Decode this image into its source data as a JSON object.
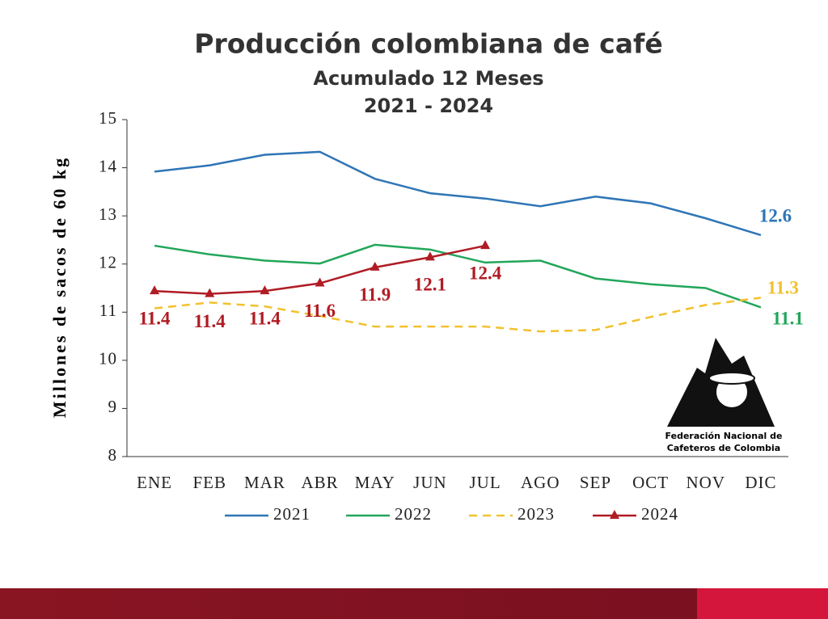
{
  "chart_data": {
    "type": "line",
    "title": "Producción colombiana de café",
    "subtitle": "Acumulado 12 Meses",
    "period": "2021 - 2024",
    "y_label": "Millones de sacos de 60 kg",
    "categories": [
      "ENE",
      "FEB",
      "MAR",
      "ABR",
      "MAY",
      "JUN",
      "JUL",
      "AGO",
      "SEP",
      "OCT",
      "NOV",
      "DIC"
    ],
    "ylim": [
      8,
      15
    ],
    "yticks": [
      8,
      9,
      10,
      11,
      12,
      13,
      14,
      15
    ],
    "series": [
      {
        "name": "2021",
        "color": "#2e75b6",
        "dashed": false,
        "marker": false,
        "values": [
          13.92,
          14.05,
          14.27,
          14.33,
          13.77,
          13.47,
          13.36,
          13.2,
          13.4,
          13.26,
          12.95,
          12.6
        ],
        "value_labels": [
          null,
          null,
          null,
          null,
          null,
          null,
          null,
          null,
          null,
          null,
          null,
          "12.6"
        ]
      },
      {
        "name": "2022",
        "color": "#22a65a",
        "dashed": false,
        "marker": false,
        "values": [
          12.38,
          12.2,
          12.07,
          12.01,
          12.4,
          12.3,
          12.03,
          12.07,
          11.7,
          11.58,
          11.5,
          11.1
        ],
        "value_labels": [
          null,
          null,
          null,
          null,
          null,
          null,
          null,
          null,
          null,
          null,
          null,
          "11.1"
        ]
      },
      {
        "name": "2023",
        "color": "#f2c12e",
        "dashed": true,
        "marker": false,
        "values": [
          11.08,
          11.2,
          11.12,
          10.92,
          10.7,
          10.7,
          10.7,
          10.6,
          10.63,
          10.9,
          11.15,
          11.3
        ],
        "value_labels": [
          null,
          null,
          null,
          null,
          null,
          null,
          null,
          null,
          null,
          null,
          null,
          "11.3"
        ]
      },
      {
        "name": "2024",
        "color": "#b01c24",
        "dashed": false,
        "marker": true,
        "values": [
          11.44,
          11.38,
          11.44,
          11.6,
          11.93,
          12.14,
          12.38,
          null,
          null,
          null,
          null,
          null
        ],
        "value_labels": [
          "11.4",
          "11.4",
          "11.4",
          "11.6",
          "11.9",
          "12.1",
          "12.4",
          null,
          null,
          null,
          null,
          null
        ]
      }
    ],
    "logo_text": [
      "Federación Nacional de",
      "Cafeteros de Colombia"
    ]
  }
}
